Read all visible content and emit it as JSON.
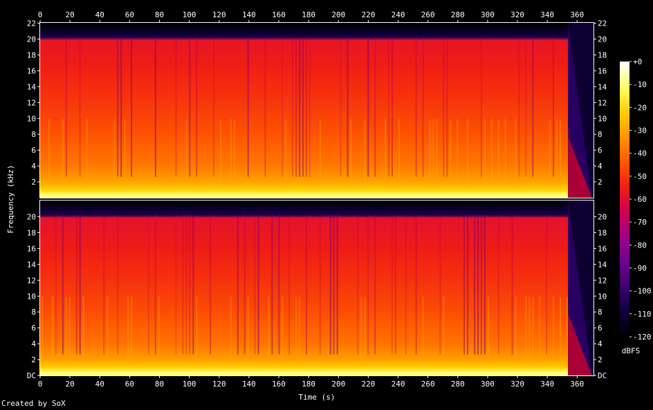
{
  "chart_data": {
    "type": "heatmap",
    "subtype": "spectrogram",
    "xlabel": "Time (s)",
    "ylabel": "Frequency (kHz)",
    "colorbar_label": "dBFS",
    "footer": "Created by SoX",
    "x_ticks": [
      0,
      20,
      40,
      60,
      80,
      100,
      120,
      140,
      160,
      180,
      200,
      220,
      240,
      260,
      280,
      300,
      320,
      340,
      360
    ],
    "xlim": [
      0,
      371
    ],
    "y_ticks_top": [
      "2",
      "4",
      "6",
      "8",
      "10",
      "12",
      "14",
      "16",
      "18",
      "20",
      "22"
    ],
    "y_ticks_bottom": [
      "DC",
      "2",
      "4",
      "6",
      "8",
      "10",
      "12",
      "14",
      "16",
      "18",
      "20"
    ],
    "ylim_khz": [
      0,
      22.05
    ],
    "colorbar_ticks": [
      "+0",
      "-10",
      "-20",
      "-30",
      "-40",
      "-50",
      "-60",
      "-70",
      "-80",
      "-90",
      "-100",
      "-110",
      "-120"
    ],
    "colorbar_range_dbfs": [
      -120,
      0
    ],
    "channels": [
      {
        "name": "",
        "lowpass_cutoff_khz": 20,
        "audio_end_s": 354,
        "fade_end_s": 370,
        "level_profile_dbfs": [
          {
            "khz": 0.2,
            "db": -8
          },
          {
            "khz": 1,
            "db": -22
          },
          {
            "khz": 2,
            "db": -30
          },
          {
            "khz": 4,
            "db": -38
          },
          {
            "khz": 8,
            "db": -45
          },
          {
            "khz": 12,
            "db": -50
          },
          {
            "khz": 16,
            "db": -54
          },
          {
            "khz": 19.9,
            "db": -58
          },
          {
            "khz": 20.1,
            "db": -105
          },
          {
            "khz": 22,
            "db": -120
          }
        ]
      },
      {
        "name": "",
        "lowpass_cutoff_khz": 20,
        "audio_end_s": 354,
        "fade_end_s": 370,
        "level_profile_dbfs": [
          {
            "khz": 0.2,
            "db": -8
          },
          {
            "khz": 1,
            "db": -22
          },
          {
            "khz": 2,
            "db": -31
          },
          {
            "khz": 4,
            "db": -39
          },
          {
            "khz": 8,
            "db": -46
          },
          {
            "khz": 12,
            "db": -51
          },
          {
            "khz": 16,
            "db": -55
          },
          {
            "khz": 19.9,
            "db": -59
          },
          {
            "khz": 20.1,
            "db": -105
          },
          {
            "khz": 22,
            "db": -120
          }
        ]
      }
    ],
    "colormap": [
      "#000000",
      "#10003a",
      "#3b006e",
      "#6f0090",
      "#a00088",
      "#cf0050",
      "#f01e14",
      "#ff5a00",
      "#ff9500",
      "#ffd000",
      "#ffff70",
      "#ffffff"
    ]
  }
}
